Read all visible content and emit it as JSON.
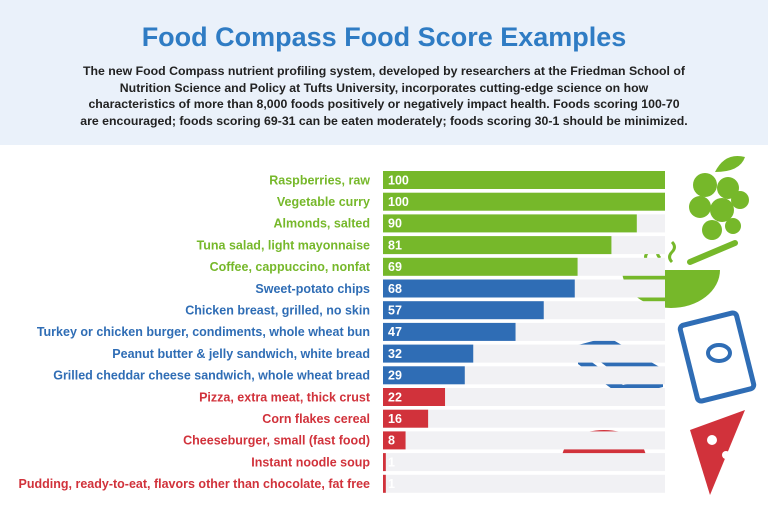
{
  "chart_data": {
    "type": "bar",
    "orientation": "horizontal",
    "title": "Food Compass Food Score Examples",
    "subtitle": "The new Food Compass nutrient profiling system, developed by researchers at the Friedman School of Nutrition Science and Policy at Tufts University, incorporates cutting-edge science on how characteristics of more than 8,000 foods positively or negatively impact health. Foods scoring 100-70 are encouraged; foods scoring 69-31 can be eaten moderately;  foods scoring 30-1 should be minimized.",
    "categories": [
      "Raspberries, raw",
      "Vegetable curry",
      "Almonds, salted",
      "Tuna salad, light mayonnaise",
      "Coffee, cappuccino, nonfat",
      "Sweet-potato chips",
      "Chicken breast, grilled, no skin",
      "Turkey or chicken burger, condiments, whole wheat bun",
      "Peanut butter & jelly sandwich, white bread",
      "Grilled cheddar cheese sandwich, whole wheat bread",
      "Pizza, extra meat, thick crust",
      "Corn flakes cereal",
      "Cheeseburger, small (fast food)",
      "Instant noodle soup",
      "Pudding, ready-to-eat, flavors other than chocolate, fat free"
    ],
    "values": [
      100,
      100,
      90,
      81,
      69,
      68,
      57,
      47,
      32,
      29,
      22,
      16,
      8,
      1,
      1
    ],
    "colors": [
      "#76b82a",
      "#76b82a",
      "#76b82a",
      "#76b82a",
      "#76b82a",
      "#2f6db5",
      "#2f6db5",
      "#2f6db5",
      "#2f6db5",
      "#2f6db5",
      "#d1323b",
      "#d1323b",
      "#d1323b",
      "#d1323b",
      "#d1323b"
    ]
  }
}
